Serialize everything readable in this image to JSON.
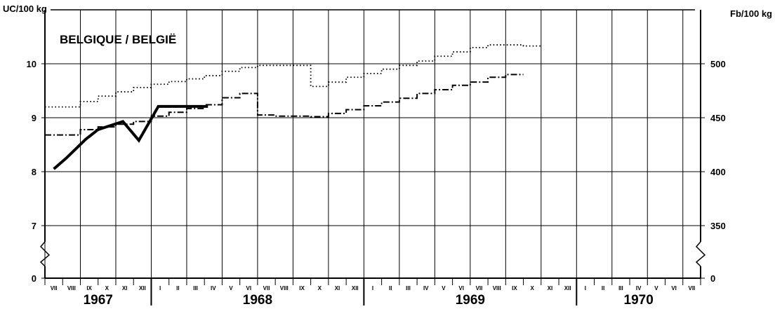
{
  "chart_data": {
    "type": "line",
    "title": "BELGIQUE / BELGIË",
    "left_unit": "UC/100 kg",
    "right_unit": "Fb/100 kg",
    "y_left": {
      "ticks": [
        "10",
        "9",
        "8",
        "7",
        "0"
      ],
      "values": [
        10,
        9,
        8,
        7
      ]
    },
    "y_right": {
      "ticks": [
        "500",
        "450",
        "400",
        "350",
        "0"
      ],
      "values": [
        500,
        450,
        400,
        350
      ]
    },
    "x_months": [
      "VII",
      "VIII",
      "IX",
      "X",
      "XI",
      "XII",
      "I",
      "II",
      "III",
      "IV",
      "V",
      "VI",
      "VII",
      "VIII",
      "IX",
      "X",
      "XI",
      "XII",
      "I",
      "II",
      "III",
      "IV",
      "V",
      "VI",
      "VII",
      "VIII",
      "IX",
      "X",
      "XI",
      "XII",
      "I",
      "II",
      "III",
      "IV",
      "V",
      "VI",
      "VII"
    ],
    "years": [
      "1967",
      "1968",
      "1969",
      "1970"
    ],
    "grid": true,
    "axis_break": true,
    "series": [
      {
        "style": "solid-thick",
        "points": [
          [
            0.5,
            8.05
          ],
          [
            1.2,
            8.25
          ],
          [
            2.3,
            8.6
          ],
          [
            3,
            8.78
          ],
          [
            4.4,
            8.93
          ],
          [
            5.3,
            8.58
          ],
          [
            6.4,
            9.21
          ],
          [
            9.2,
            9.21
          ]
        ]
      },
      {
        "style": "dotted-step",
        "steps": [
          [
            0,
            9.2
          ],
          [
            1,
            9.2
          ],
          [
            2,
            9.3
          ],
          [
            3,
            9.4
          ],
          [
            4,
            9.48
          ],
          [
            5,
            9.56
          ],
          [
            6,
            9.62
          ],
          [
            7,
            9.67
          ],
          [
            8,
            9.72
          ],
          [
            9,
            9.78
          ],
          [
            10,
            9.86
          ],
          [
            11,
            9.93
          ],
          [
            12,
            9.97
          ],
          [
            13,
            9.97
          ],
          [
            14,
            9.97
          ],
          [
            15,
            9.58
          ],
          [
            16,
            9.66
          ],
          [
            17,
            9.75
          ],
          [
            18,
            9.82
          ],
          [
            19,
            9.9
          ],
          [
            20,
            9.97
          ],
          [
            21,
            10.05
          ],
          [
            22,
            10.14
          ],
          [
            23,
            10.22
          ],
          [
            24,
            10.3
          ],
          [
            25,
            10.35
          ],
          [
            26,
            10.35
          ],
          [
            27,
            10.33
          ]
        ]
      },
      {
        "style": "dash-dot-step",
        "steps": [
          [
            0,
            8.68
          ],
          [
            1,
            8.68
          ],
          [
            2,
            8.78
          ],
          [
            3,
            8.83
          ],
          [
            4,
            8.88
          ],
          [
            5,
            8.93
          ],
          [
            6,
            9.03
          ],
          [
            7,
            9.1
          ],
          [
            8,
            9.17
          ],
          [
            9,
            9.24
          ],
          [
            10,
            9.37
          ],
          [
            11,
            9.45
          ],
          [
            12,
            9.05
          ],
          [
            13,
            9.03
          ],
          [
            14,
            9.03
          ],
          [
            15,
            9.02
          ],
          [
            16,
            9.08
          ],
          [
            17,
            9.15
          ],
          [
            18,
            9.22
          ],
          [
            19,
            9.29
          ],
          [
            20,
            9.36
          ],
          [
            21,
            9.45
          ],
          [
            22,
            9.52
          ],
          [
            23,
            9.6
          ],
          [
            24,
            9.66
          ],
          [
            25,
            9.75
          ],
          [
            26,
            9.8
          ]
        ]
      }
    ]
  }
}
